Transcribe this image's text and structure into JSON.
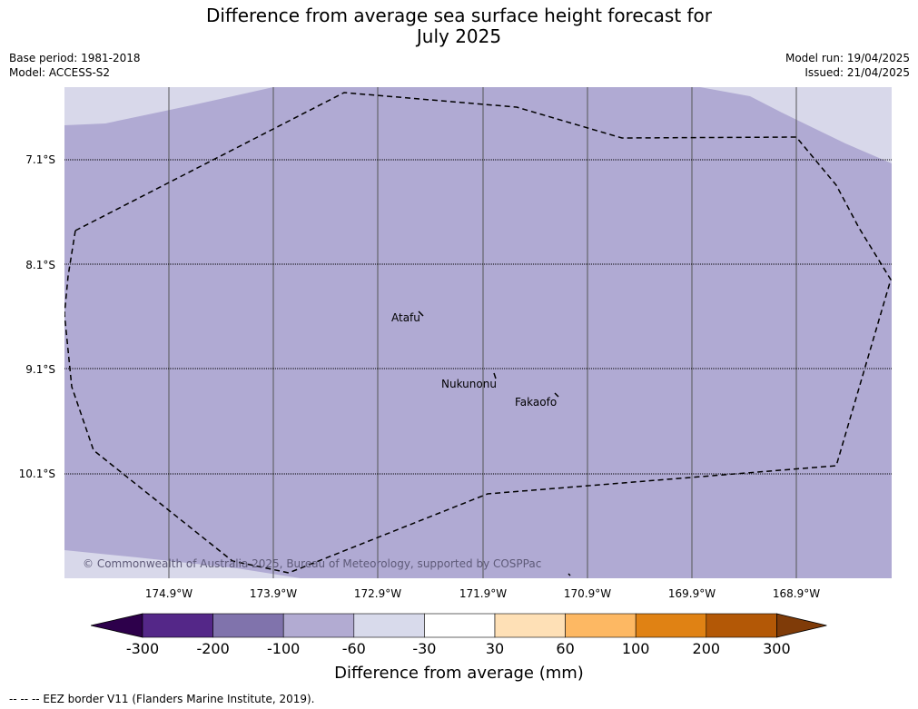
{
  "title": {
    "line1": "Difference from average sea surface height forecast for",
    "line2": "July 2025"
  },
  "meta": {
    "base_period": "Base period: 1981-2018",
    "model": "Model: ACCESS-S2",
    "model_run": "Model run: 19/04/2025",
    "issued": "Issued: 21/04/2025"
  },
  "map": {
    "background_color": "#b0aad3",
    "light_region_color": "#d8d8ea",
    "latitude_labels": [
      "7.1°S",
      "8.1°S",
      "9.1°S",
      "10.1°S"
    ],
    "longitude_labels": [
      "174.9°W",
      "173.9°W",
      "172.9°W",
      "171.9°W",
      "170.9°W",
      "169.9°W",
      "168.9°W"
    ],
    "places": {
      "atafu": "Atafu",
      "nukunonu": "Nukunonu",
      "fakaofo": "Fakaofo"
    },
    "copyright": "© Commonwealth of Australia 2025, Bureau of Meteorology, supported by COSPPac"
  },
  "colorbar": {
    "title": "Difference from average (mm)",
    "ticks": [
      "-300",
      "-200",
      "-100",
      "-60",
      "-30",
      "30",
      "60",
      "100",
      "200",
      "300"
    ],
    "colors": [
      "#2d004b",
      "#542788",
      "#8073ac",
      "#b2abd2",
      "#d8daeb",
      "#ffffff",
      "#fee0b6",
      "#fdb863",
      "#e08214",
      "#b35806",
      "#7f3b08"
    ]
  },
  "footnote": "--  --  -- EEZ border V11 (Flanders Marine Institute, 2019)."
}
